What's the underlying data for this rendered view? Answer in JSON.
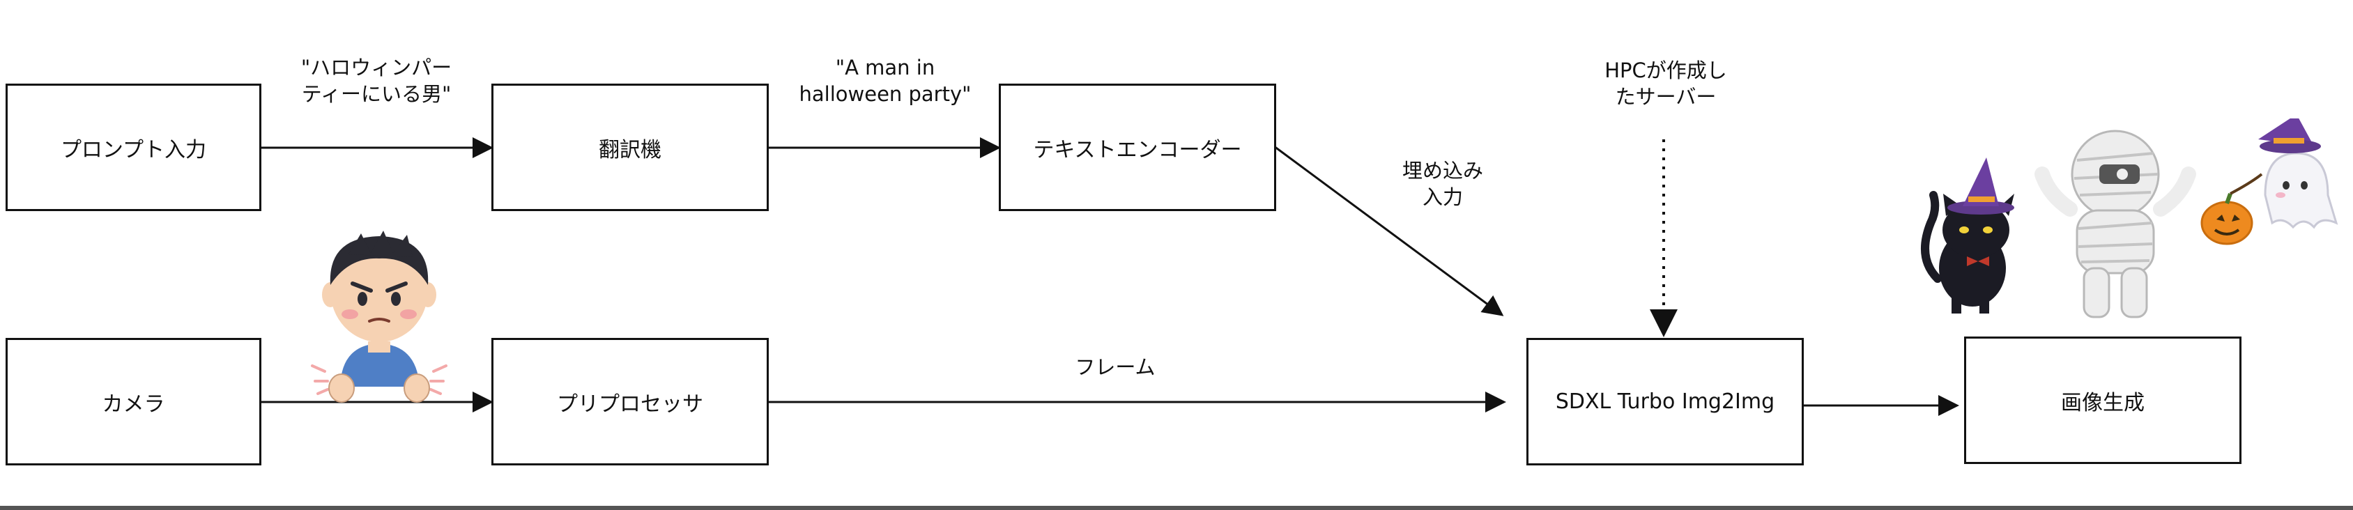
{
  "nodes": {
    "prompt_input": "プロンプト入力",
    "translator": "翻訳機",
    "text_encoder": "テキストエンコーダー",
    "camera": "カメラ",
    "preprocessor": "プリプロセッサ",
    "sdxl": "SDXL Turbo Img2Img",
    "image_generation": "画像生成"
  },
  "edge_labels": {
    "japanese_prompt": "\"ハロウィンパー\nティーにいる男\"",
    "english_prompt": "\"A man in\nhalloween party\"",
    "embedding_input": "埋め込み\n入力",
    "frame": "フレーム",
    "hpc_server": "HPCが作成し\nたサーバー"
  },
  "illustrations": {
    "person": "person-illustration",
    "halloween": "halloween-characters"
  },
  "colors": {
    "line": "#111111",
    "box_border": "#111111"
  }
}
